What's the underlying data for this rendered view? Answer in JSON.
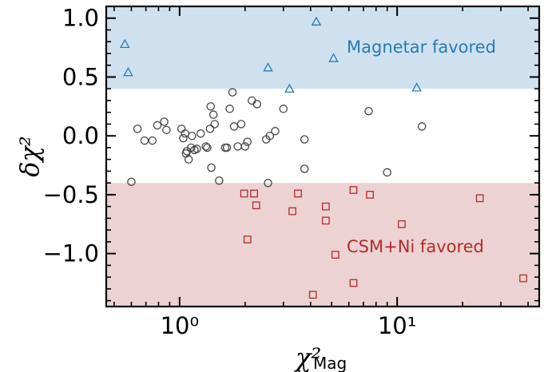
{
  "chart_data": {
    "type": "scatter",
    "xlabel": "χ²",
    "xlabel_sub": "Mag",
    "ylabel": "δχ²",
    "x_scale": "log",
    "xlim": [
      0.46,
      45
    ],
    "ylim": [
      -1.45,
      1.1
    ],
    "x_ticks": [
      {
        "value": 1,
        "label": "10⁰"
      },
      {
        "value": 10,
        "label": "10¹"
      }
    ],
    "y_ticks": [
      {
        "value": 1.0,
        "label": "1.0"
      },
      {
        "value": 0.5,
        "label": "0.5"
      },
      {
        "value": 0.0,
        "label": "0.0"
      },
      {
        "value": -0.5,
        "label": "−0.5"
      },
      {
        "value": -1.0,
        "label": "−1.0"
      }
    ],
    "regions": [
      {
        "y0": 0.4,
        "y1": 1.1,
        "color": "#cfe1ee",
        "label": "Magnetar favored",
        "label_color": "#2a7ab5"
      },
      {
        "y0": -1.45,
        "y1": -0.4,
        "color": "#ecd2d2",
        "label": "CSM+Ni favored",
        "label_color": "#b22c2c"
      }
    ],
    "series": [
      {
        "marker": "triangle",
        "color": "#2a7ab5",
        "points": [
          [
            0.56,
            0.78
          ],
          [
            0.58,
            0.54
          ],
          [
            2.55,
            0.58
          ],
          [
            3.2,
            0.4
          ],
          [
            4.25,
            0.97
          ],
          [
            5.1,
            0.66
          ],
          [
            12.3,
            0.41
          ]
        ]
      },
      {
        "marker": "circle",
        "color": "#444444",
        "points": [
          [
            0.6,
            -0.39
          ],
          [
            0.64,
            0.06
          ],
          [
            0.69,
            -0.04
          ],
          [
            0.75,
            -0.04
          ],
          [
            0.79,
            0.09
          ],
          [
            0.85,
            0.12
          ],
          [
            0.87,
            0.05
          ],
          [
            1.02,
            0.06
          ],
          [
            1.04,
            -0.02
          ],
          [
            1.06,
            0.02
          ],
          [
            1.07,
            -0.15
          ],
          [
            1.08,
            -0.13
          ],
          [
            1.1,
            -0.2
          ],
          [
            1.13,
            -0.1
          ],
          [
            1.14,
            0.0
          ],
          [
            1.17,
            -0.12
          ],
          [
            1.2,
            -0.11
          ],
          [
            1.25,
            0.02
          ],
          [
            1.32,
            -0.09
          ],
          [
            1.34,
            -0.1
          ],
          [
            1.38,
            0.06
          ],
          [
            1.39,
            0.25
          ],
          [
            1.4,
            -0.27
          ],
          [
            1.43,
            0.18
          ],
          [
            1.45,
            0.1
          ],
          [
            1.52,
            -0.38
          ],
          [
            1.62,
            -0.1
          ],
          [
            1.65,
            -0.1
          ],
          [
            1.7,
            0.23
          ],
          [
            1.75,
            0.37
          ],
          [
            1.78,
            0.08
          ],
          [
            1.85,
            -0.09
          ],
          [
            1.92,
            0.1
          ],
          [
            2.0,
            -0.09
          ],
          [
            2.05,
            -0.05
          ],
          [
            2.15,
            0.3
          ],
          [
            2.27,
            0.27
          ],
          [
            2.5,
            -0.03
          ],
          [
            2.55,
            -0.4
          ],
          [
            2.6,
            0.0
          ],
          [
            2.75,
            0.04
          ],
          [
            3.0,
            0.23
          ],
          [
            3.75,
            -0.03
          ],
          [
            3.75,
            -0.28
          ],
          [
            7.4,
            0.21
          ],
          [
            9.0,
            -0.31
          ],
          [
            13.0,
            0.08
          ]
        ]
      },
      {
        "marker": "square",
        "color": "#b22c2c",
        "points": [
          [
            1.98,
            -0.49
          ],
          [
            2.05,
            -0.88
          ],
          [
            2.2,
            -0.49
          ],
          [
            2.25,
            -0.59
          ],
          [
            3.3,
            -0.64
          ],
          [
            3.5,
            -0.49
          ],
          [
            4.1,
            -1.35
          ],
          [
            4.7,
            -0.6
          ],
          [
            4.7,
            -0.72
          ],
          [
            5.2,
            -1.01
          ],
          [
            6.3,
            -0.46
          ],
          [
            6.3,
            -1.25
          ],
          [
            7.5,
            -0.5
          ],
          [
            10.5,
            -0.75
          ],
          [
            24.0,
            -0.53
          ],
          [
            38.0,
            -1.21
          ]
        ]
      }
    ]
  }
}
